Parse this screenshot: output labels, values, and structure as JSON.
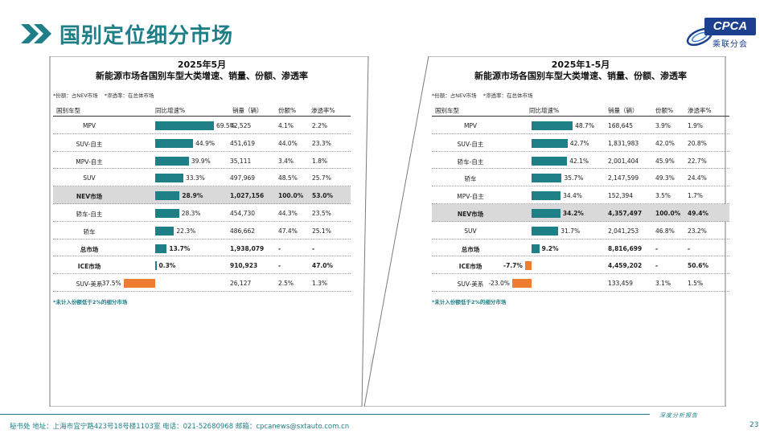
{
  "page": {
    "title": "国别定位细分市场",
    "logo_mark": "CPCA",
    "logo_text": "乘联分会",
    "watermark": "CPCA",
    "footer_text": "秘书处  地址：上海市宜宁路423号18号楼1103室  电话：021-52680968  邮箱：cpcanews@sxtauto.com.cn",
    "footer_right": "深度分析报告",
    "page_number": "23",
    "colors": {
      "accent": "#1f7f86",
      "positive_bar": "#1f7f86",
      "negative_bar": "#ed7d31",
      "logo_blue": "#1c3f8f"
    }
  },
  "panels": [
    {
      "title_line1": "2025年5月",
      "title_line2": "新能源市场各国别车型大类增速、销量、份额、渗透率",
      "note1": "*份额：占NEV市场",
      "note2": "*渗透率：在总体市场",
      "headers": {
        "name": "国别车型",
        "yoy": "同比增速%",
        "sales": "销量（辆）",
        "share": "份额%",
        "penetration": "渗透率%"
      },
      "rows": [
        {
          "name": "MPV",
          "yoy": 69.5,
          "yoy_label": "69.5%",
          "sales": "42,525",
          "share": "4.1%",
          "penetration": "2.2%",
          "style": ""
        },
        {
          "name": "SUV-自主",
          "yoy": 44.9,
          "yoy_label": "44.9%",
          "sales": "451,619",
          "share": "44.0%",
          "penetration": "23.3%",
          "style": ""
        },
        {
          "name": "MPV-自主",
          "yoy": 39.9,
          "yoy_label": "39.9%",
          "sales": "35,111",
          "share": "3.4%",
          "penetration": "1.8%",
          "style": ""
        },
        {
          "name": "SUV",
          "yoy": 33.3,
          "yoy_label": "33.3%",
          "sales": "497,969",
          "share": "48.5%",
          "penetration": "25.7%",
          "style": ""
        },
        {
          "name": "NEV市场",
          "yoy": 28.9,
          "yoy_label": "28.9%",
          "sales": "1,027,156",
          "share": "100.0%",
          "penetration": "53.0%",
          "style": "hl"
        },
        {
          "name": "轿车-自主",
          "yoy": 28.3,
          "yoy_label": "28.3%",
          "sales": "454,730",
          "share": "44.3%",
          "penetration": "23.5%",
          "style": ""
        },
        {
          "name": "轿车",
          "yoy": 22.3,
          "yoy_label": "22.3%",
          "sales": "486,662",
          "share": "47.4%",
          "penetration": "25.1%",
          "style": ""
        },
        {
          "name": "总市场",
          "yoy": 13.7,
          "yoy_label": "13.7%",
          "sales": "1,938,079",
          "share": "-",
          "penetration": "-",
          "style": "bold"
        },
        {
          "name": "ICE市场",
          "yoy": 0.3,
          "yoy_label": "0.3%",
          "sales": "910,923",
          "share": "-",
          "penetration": "47.0%",
          "style": "bold"
        },
        {
          "name": "SUV-美系",
          "yoy": -37.5,
          "yoy_label": "-37.5%",
          "sales": "26,127",
          "share": "2.5%",
          "penetration": "1.3%",
          "style": ""
        }
      ],
      "footnote": "*未计入份额低于2%的细分市场"
    },
    {
      "title_line1": "2025年1-5月",
      "title_line2": "新能源市场各国别车型大类增速、销量、份额、渗透率",
      "note1": "*份额：占NEV市场",
      "note2": "*渗透率：在总体市场",
      "headers": {
        "name": "国别车型",
        "yoy": "同比增速%",
        "sales": "销量（辆）",
        "share": "份额%",
        "penetration": "渗透率%"
      },
      "rows": [
        {
          "name": "MPV",
          "yoy": 48.7,
          "yoy_label": "48.7%",
          "sales": "168,645",
          "share": "3.9%",
          "penetration": "1.9%",
          "style": ""
        },
        {
          "name": "SUV-自主",
          "yoy": 42.7,
          "yoy_label": "42.7%",
          "sales": "1,831,983",
          "share": "42.0%",
          "penetration": "20.8%",
          "style": ""
        },
        {
          "name": "轿车-自主",
          "yoy": 42.1,
          "yoy_label": "42.1%",
          "sales": "2,001,404",
          "share": "45.9%",
          "penetration": "22.7%",
          "style": ""
        },
        {
          "name": "轿车",
          "yoy": 35.7,
          "yoy_label": "35.7%",
          "sales": "2,147,599",
          "share": "49.3%",
          "penetration": "24.4%",
          "style": ""
        },
        {
          "name": "MPV-自主",
          "yoy": 34.4,
          "yoy_label": "34.4%",
          "sales": "152,394",
          "share": "3.5%",
          "penetration": "1.7%",
          "style": ""
        },
        {
          "name": "NEV市场",
          "yoy": 34.2,
          "yoy_label": "34.2%",
          "sales": "4,357,497",
          "share": "100.0%",
          "penetration": "49.4%",
          "style": "hl"
        },
        {
          "name": "SUV",
          "yoy": 31.7,
          "yoy_label": "31.7%",
          "sales": "2,041,253",
          "share": "46.8%",
          "penetration": "23.2%",
          "style": ""
        },
        {
          "name": "总市场",
          "yoy": 9.2,
          "yoy_label": "9.2%",
          "sales": "8,816,699",
          "share": "-",
          "penetration": "-",
          "style": "bold"
        },
        {
          "name": "ICE市场",
          "yoy": -7.7,
          "yoy_label": "-7.7%",
          "sales": "4,459,202",
          "share": "-",
          "penetration": "50.6%",
          "style": "bold"
        },
        {
          "name": "SUV-美系",
          "yoy": -23.0,
          "yoy_label": "-23.0%",
          "sales": "133,459",
          "share": "3.1%",
          "penetration": "1.5%",
          "style": ""
        }
      ],
      "footnote": "*未计入份额低于2%的细分市场"
    }
  ]
}
